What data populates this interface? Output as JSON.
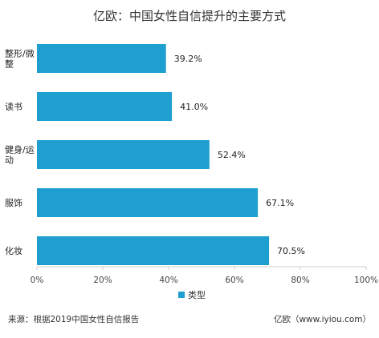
{
  "chart_data": {
    "type": "bar",
    "orientation": "horizontal",
    "title": "亿欧：中国女性自信提升的主要方式",
    "categories": [
      "整形/微\n整",
      "读书",
      "健身/运\n动",
      "服饰",
      "化妆"
    ],
    "series": [
      {
        "name": "类型",
        "values": [
          39.2,
          41.0,
          52.4,
          67.1,
          70.5
        ],
        "value_labels": [
          "39.2%",
          "41.0%",
          "52.4%",
          "67.1%",
          "70.5%"
        ],
        "color": "#1f9fcf"
      }
    ],
    "x_ticks": [
      0,
      20,
      40,
      60,
      80,
      100
    ],
    "x_tick_labels": [
      "0%",
      "20%",
      "40%",
      "60%",
      "80%",
      "100%"
    ],
    "xlim": [
      0,
      100
    ],
    "grid": false,
    "legend_position": "bottom"
  },
  "footer": {
    "source": "来源：根据2019中国女性自信报告",
    "credit": "亿欧（www.iyiou.com）"
  },
  "colors": {
    "bar": "#1f9fcf",
    "axis": "#cccccc"
  }
}
